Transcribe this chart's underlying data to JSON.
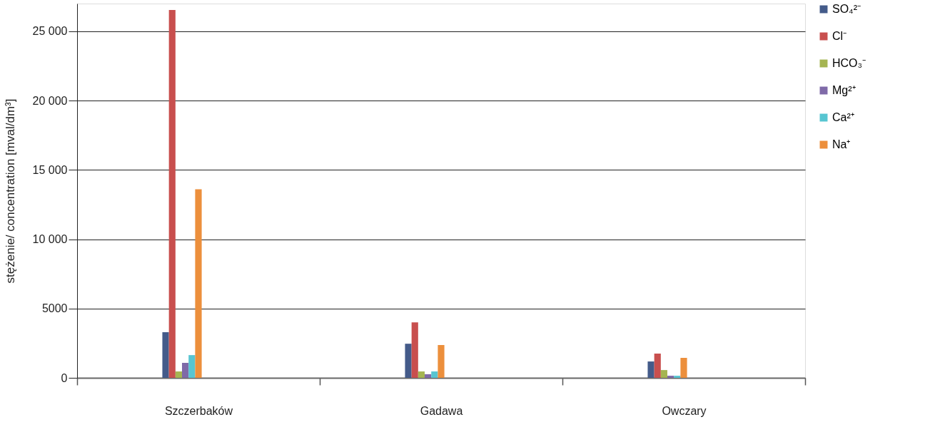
{
  "chart_data": {
    "type": "bar",
    "ylabel": "stężenie/ concentration [mval/dm³]",
    "categories": [
      "Szczerbaków",
      "Gadawa",
      "Owczary"
    ],
    "series": [
      {
        "name": "SO₄²⁻",
        "color": "#445b8a",
        "values": [
          3290,
          2460,
          1180
        ]
      },
      {
        "name": "Cl⁻",
        "color": "#c84f4e",
        "values": [
          26540,
          4000,
          1750
        ]
      },
      {
        "name": "HCO₃⁻",
        "color": "#a5b552",
        "values": [
          460,
          460,
          560
        ]
      },
      {
        "name": "Mg²⁺",
        "color": "#7f6aa8",
        "values": [
          1080,
          260,
          150
        ]
      },
      {
        "name": "Ca²⁺",
        "color": "#57c5d1",
        "values": [
          1640,
          460,
          150
        ]
      },
      {
        "name": "Na⁺",
        "color": "#ec8f3c",
        "values": [
          13600,
          2360,
          1440
        ]
      }
    ],
    "ylim": [
      0,
      27000
    ],
    "yticks": [
      0,
      {
        "value": 5000,
        "label": "5000"
      },
      {
        "value": 10000,
        "label": "10 000"
      },
      {
        "value": 15000,
        "label": "15 000"
      },
      {
        "value": 20000,
        "label": "20 000"
      },
      {
        "value": 25000,
        "label": "25 000"
      }
    ],
    "grid": "y",
    "legend": "right"
  }
}
